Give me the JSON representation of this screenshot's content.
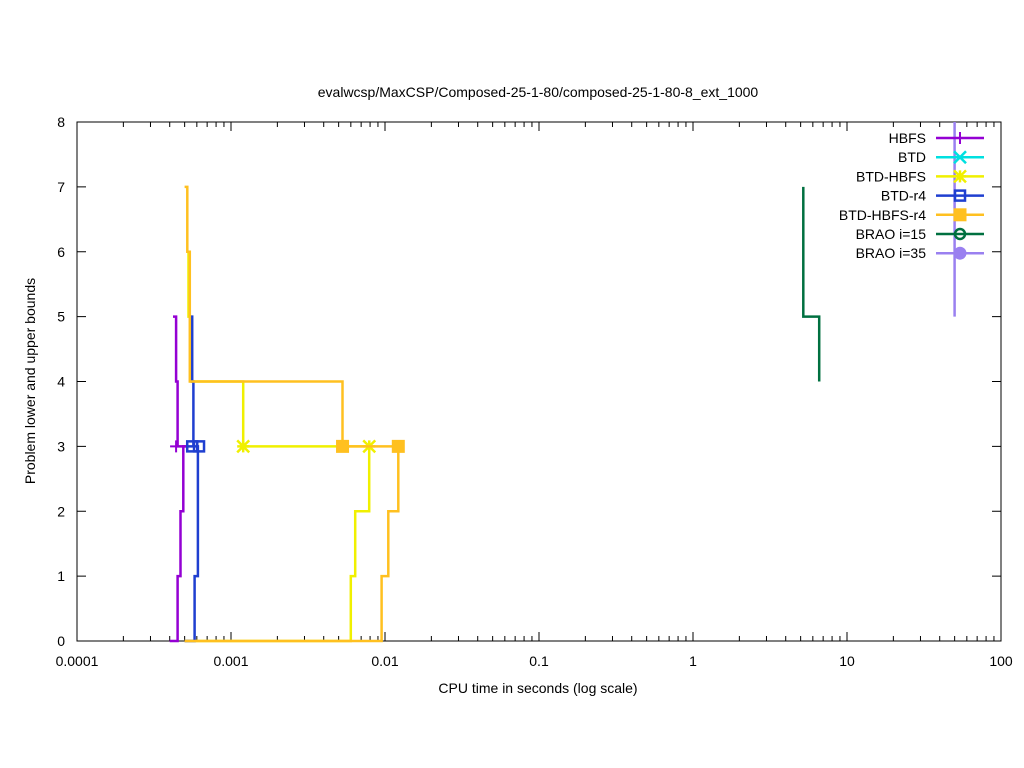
{
  "chart_data": {
    "type": "line",
    "title": "evalwcsp/MaxCSP/Composed-25-1-80/composed-25-1-80-8_ext_1000",
    "xlabel": "CPU time in seconds (log scale)",
    "ylabel": "Problem lower and upper bounds",
    "xscale": "log",
    "xlim": [
      0.0001,
      100
    ],
    "ylim": [
      0,
      8
    ],
    "xticks": [
      {
        "value": 0.0001,
        "label": "0.0001"
      },
      {
        "value": 0.001,
        "label": "0.001"
      },
      {
        "value": 0.01,
        "label": "0.01"
      },
      {
        "value": 0.1,
        "label": "0.1"
      },
      {
        "value": 1,
        "label": "1"
      },
      {
        "value": 10,
        "label": "10"
      },
      {
        "value": 100,
        "label": "100"
      }
    ],
    "yticks": [
      {
        "value": 0,
        "label": "0"
      },
      {
        "value": 1,
        "label": "1"
      },
      {
        "value": 2,
        "label": "2"
      },
      {
        "value": 3,
        "label": "3"
      },
      {
        "value": 4,
        "label": "4"
      },
      {
        "value": 5,
        "label": "5"
      },
      {
        "value": 6,
        "label": "6"
      },
      {
        "value": 7,
        "label": "7"
      },
      {
        "value": 8,
        "label": "8"
      }
    ],
    "grid": false,
    "legend_position": "top-right",
    "series": [
      {
        "name": "HBFS",
        "color": "#9400d3",
        "marker": "plus",
        "lines": [
          [
            [
              0.0004,
              0
            ],
            [
              0.00045,
              0
            ],
            [
              0.00045,
              1
            ],
            [
              0.00047,
              1
            ],
            [
              0.00047,
              2
            ],
            [
              0.00049,
              2
            ],
            [
              0.00049,
              3
            ],
            [
              0.00052,
              3
            ]
          ],
          [
            [
              0.00042,
              5
            ],
            [
              0.00042,
              5
            ],
            [
              0.00044,
              5
            ],
            [
              0.00044,
              4
            ],
            [
              0.00045,
              4
            ],
            [
              0.00045,
              3
            ],
            [
              0.00052,
              3
            ]
          ]
        ],
        "points": [
          [
            0.00044,
            3
          ]
        ]
      },
      {
        "name": "BTD",
        "color": "#00e0e0",
        "marker": "cross",
        "lines": [],
        "points": []
      },
      {
        "name": "BTD-HBFS",
        "color": "#f0f000",
        "marker": "star",
        "lines": [
          [
            [
              0.0005,
              0
            ],
            [
              0.006,
              0
            ],
            [
              0.006,
              1
            ],
            [
              0.0064,
              1
            ],
            [
              0.0064,
              2
            ],
            [
              0.0079,
              2
            ],
            [
              0.0079,
              3
            ],
            [
              0.0012,
              3
            ]
          ],
          [
            [
              0.00052,
              6
            ],
            [
              0.00053,
              6
            ],
            [
              0.00053,
              5
            ],
            [
              0.00055,
              5
            ],
            [
              0.00055,
              4
            ],
            [
              0.0012,
              4
            ],
            [
              0.0012,
              3
            ]
          ]
        ],
        "points": [
          [
            0.0012,
            3
          ],
          [
            0.0079,
            3
          ]
        ]
      },
      {
        "name": "BTD-r4",
        "color": "#1f3fd0",
        "marker": "open-square",
        "lines": [
          [
            [
              0.0005,
              0
            ],
            [
              0.00058,
              0
            ],
            [
              0.00058,
              1
            ],
            [
              0.00061,
              1
            ],
            [
              0.00061,
              3
            ],
            [
              0.00052,
              3
            ]
          ],
          [
            [
              0.00054,
              5
            ],
            [
              0.00054,
              5
            ],
            [
              0.00056,
              5
            ],
            [
              0.00056,
              4
            ],
            [
              0.00057,
              4
            ],
            [
              0.00057,
              3
            ]
          ]
        ],
        "points": [
          [
            0.00056,
            3
          ],
          [
            0.00062,
            3
          ]
        ]
      },
      {
        "name": "BTD-HBFS-r4",
        "color": "#ffc020",
        "marker": "filled-square",
        "lines": [
          [
            [
              0.0005,
              0
            ],
            [
              0.0095,
              0
            ],
            [
              0.0095,
              1
            ],
            [
              0.0105,
              1
            ],
            [
              0.0105,
              2
            ],
            [
              0.0122,
              2
            ],
            [
              0.0122,
              3
            ],
            [
              0.0053,
              3
            ]
          ],
          [
            [
              0.0005,
              7
            ],
            [
              0.00052,
              7
            ],
            [
              0.00052,
              6
            ],
            [
              0.00054,
              6
            ],
            [
              0.00054,
              4
            ],
            [
              0.0053,
              4
            ],
            [
              0.0053,
              3
            ]
          ]
        ],
        "points": [
          [
            0.0053,
            3
          ],
          [
            0.0122,
            3
          ]
        ]
      },
      {
        "name": "BRAO i=15",
        "color": "#007040",
        "marker": "open-circle",
        "lines": [
          [
            [
              5.2,
              7
            ],
            [
              5.2,
              5
            ],
            [
              6.6,
              5
            ],
            [
              6.6,
              4
            ]
          ]
        ],
        "points": []
      },
      {
        "name": "BRAO i=35",
        "color": "#9a80f0",
        "marker": "filled-circle",
        "lines": [
          [
            [
              50,
              8
            ],
            [
              50,
              5
            ]
          ]
        ],
        "points": []
      }
    ]
  }
}
